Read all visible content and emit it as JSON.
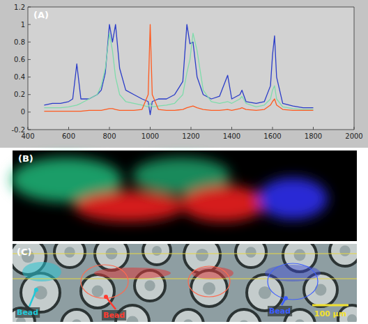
{
  "chart_data": {
    "type": "line",
    "title": "(A)",
    "x": [
      480,
      520,
      560,
      600,
      620,
      640,
      660,
      700,
      740,
      760,
      780,
      800,
      815,
      830,
      850,
      880,
      920,
      960,
      990,
      1000,
      1010,
      1040,
      1080,
      1120,
      1160,
      1180,
      1195,
      1210,
      1230,
      1260,
      1300,
      1340,
      1380,
      1400,
      1440,
      1450,
      1470,
      1520,
      1560,
      1590,
      1600,
      1610,
      1620,
      1650,
      1700,
      1750,
      1800
    ],
    "series": [
      {
        "color": "#2a3cc8",
        "values": [
          0.08,
          0.1,
          0.1,
          0.12,
          0.15,
          0.55,
          0.15,
          0.15,
          0.2,
          0.25,
          0.45,
          1.0,
          0.8,
          1.0,
          0.5,
          0.25,
          0.2,
          0.15,
          0.12,
          -0.03,
          0.12,
          0.15,
          0.15,
          0.2,
          0.35,
          1.0,
          0.78,
          0.8,
          0.4,
          0.2,
          0.15,
          0.18,
          0.42,
          0.15,
          0.2,
          0.25,
          0.12,
          0.1,
          0.12,
          0.3,
          0.65,
          0.87,
          0.4,
          0.1,
          0.07,
          0.05,
          0.05
        ]
      },
      {
        "color": "#7fdcab",
        "values": [
          0.05,
          0.05,
          0.05,
          0.06,
          0.07,
          0.08,
          0.1,
          0.15,
          0.2,
          0.3,
          0.5,
          0.9,
          0.7,
          0.4,
          0.2,
          0.12,
          0.1,
          0.08,
          0.06,
          0.1,
          0.06,
          0.07,
          0.08,
          0.1,
          0.2,
          0.45,
          0.6,
          0.9,
          0.7,
          0.25,
          0.12,
          0.1,
          0.12,
          0.1,
          0.15,
          0.18,
          0.1,
          0.06,
          0.08,
          0.15,
          0.25,
          0.3,
          0.15,
          0.06,
          0.04,
          0.03,
          0.03
        ]
      },
      {
        "color": "#ff5a1f",
        "values": [
          0.01,
          0.01,
          0.01,
          0.01,
          0.01,
          0.01,
          0.01,
          0.02,
          0.02,
          0.02,
          0.03,
          0.04,
          0.04,
          0.03,
          0.02,
          0.02,
          0.02,
          0.03,
          0.2,
          1.0,
          0.2,
          0.03,
          0.02,
          0.02,
          0.03,
          0.05,
          0.06,
          0.07,
          0.05,
          0.03,
          0.02,
          0.02,
          0.03,
          0.02,
          0.04,
          0.05,
          0.03,
          0.02,
          0.03,
          0.08,
          0.12,
          0.15,
          0.08,
          0.03,
          0.02,
          0.02,
          0.02
        ]
      }
    ],
    "xlim": [
      400,
      2000
    ],
    "xticks": [
      400,
      600,
      800,
      1000,
      1200,
      1400,
      1600,
      1800,
      2000
    ],
    "ylim": [
      -0.2,
      1.2
    ],
    "yticks": [
      -0.2,
      0,
      0.2,
      0.4,
      0.6,
      0.8,
      1,
      1.2
    ],
    "grid": false
  },
  "map_panel": {
    "label": "(B)"
  },
  "image_panel": {
    "label": "(C)",
    "annotations": [
      {
        "text": "Bead",
        "color": "#22c8d8"
      },
      {
        "text": "Bead",
        "color": "#ff3b30"
      },
      {
        "text": "Bead",
        "color": "#3a5cff"
      }
    ],
    "scale_bar": "100 μm"
  }
}
